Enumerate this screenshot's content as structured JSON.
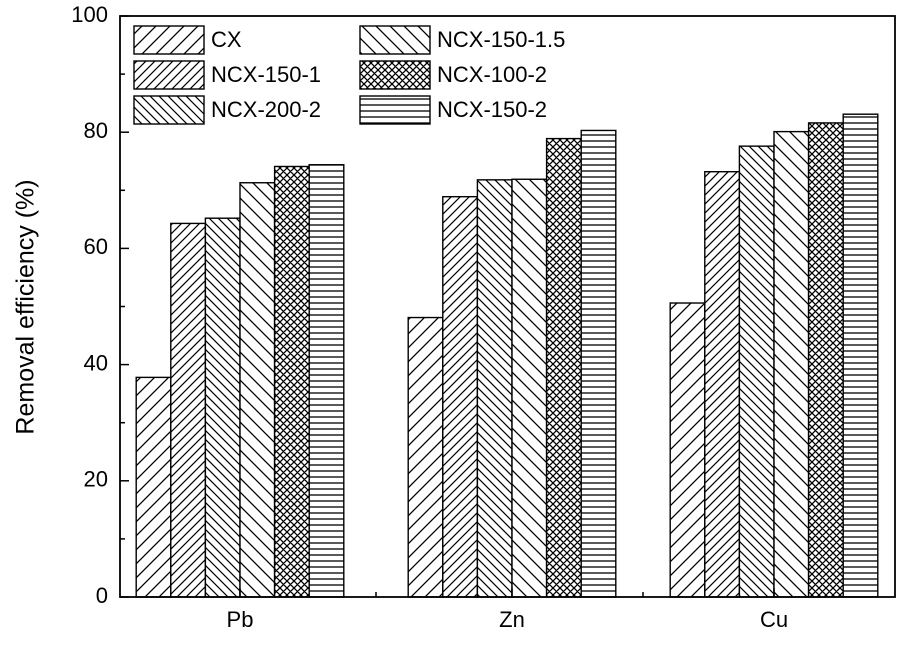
{
  "chart_data": {
    "type": "bar",
    "title": "",
    "xlabel": "",
    "ylabel": "Removal efficiency (%)",
    "categories": [
      "Pb",
      "Zn",
      "Cu"
    ],
    "ylim": [
      0,
      100
    ],
    "yticks": [
      0,
      20,
      40,
      60,
      80,
      100
    ],
    "grid": false,
    "legend_position": "top-left",
    "series": [
      {
        "name": "CX",
        "values": [
          37.8,
          48.1,
          50.6
        ],
        "pattern": "diag-up-wide"
      },
      {
        "name": "NCX-150-1",
        "values": [
          64.3,
          68.9,
          73.2
        ],
        "pattern": "diag-up"
      },
      {
        "name": "NCX-200-2",
        "values": [
          65.2,
          71.8,
          77.6
        ],
        "pattern": "diag-down"
      },
      {
        "name": "NCX-150-1.5",
        "values": [
          71.3,
          71.9,
          80.1
        ],
        "pattern": "diag-down-wide"
      },
      {
        "name": "NCX-100-2",
        "values": [
          74.1,
          78.9,
          81.6
        ],
        "pattern": "crosshatch"
      },
      {
        "name": "NCX-150-2",
        "values": [
          74.4,
          80.3,
          83.1
        ],
        "pattern": "horizontal"
      }
    ]
  }
}
